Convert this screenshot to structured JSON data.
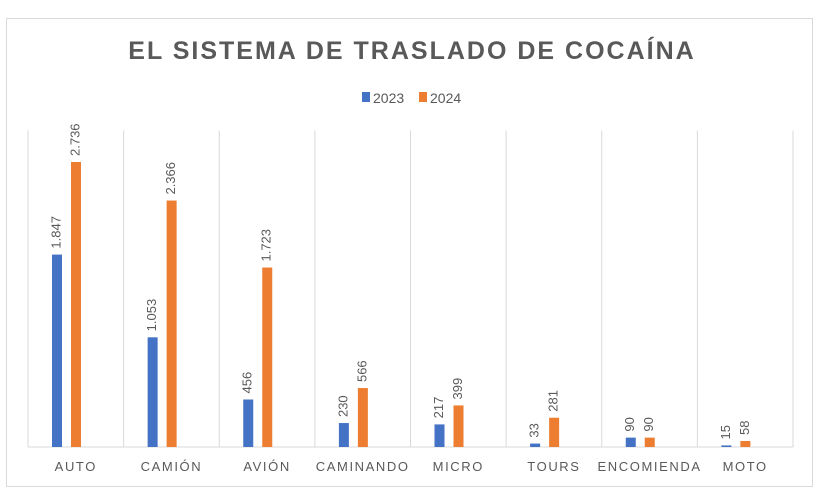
{
  "chart_data": {
    "type": "bar",
    "title": "EL SISTEMA DE TRASLADO DE COCAÍNA",
    "categories": [
      "AUTO",
      "CAMIÓN",
      "AVIÓN",
      "CAMINANDO",
      "MICRO",
      "TOURS",
      "ENCOMIENDA",
      "MOTO"
    ],
    "series": [
      {
        "name": "2023",
        "color": "#4472c4",
        "values": [
          1847,
          1053,
          456,
          230,
          217,
          33,
          90,
          15
        ],
        "labels": [
          "1.847",
          "1.053",
          "456",
          "230",
          "217",
          "33",
          "90",
          "15"
        ]
      },
      {
        "name": "2024",
        "color": "#ed7d31",
        "values": [
          2736,
          2366,
          1723,
          566,
          399,
          281,
          90,
          58
        ],
        "labels": [
          "2.736",
          "2.366",
          "1.723",
          "566",
          "399",
          "281",
          "90",
          "58"
        ]
      }
    ],
    "xlabel": "",
    "ylabel": "",
    "ylim": [
      0,
      3000
    ],
    "grid": "vertical category separators",
    "legend": "top-center"
  }
}
